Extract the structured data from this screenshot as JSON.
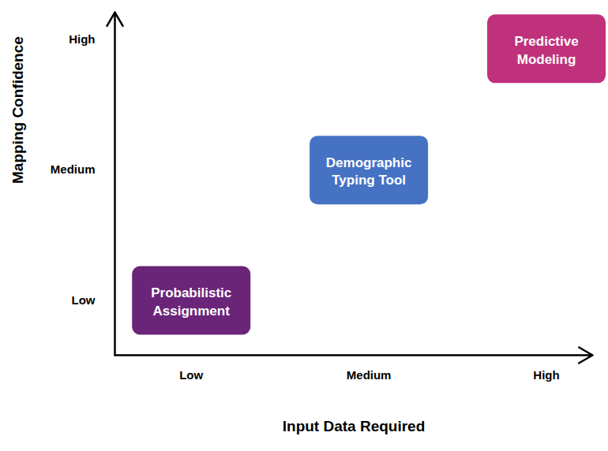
{
  "chart_data": {
    "type": "scatter",
    "x_label": "Input Data Required",
    "y_label": "Mapping Confidence",
    "xlim": [
      0.57,
      3.26
    ],
    "ylim": [
      0.58,
      3.21
    ],
    "xticks": [
      {
        "value": 1,
        "label": "Low"
      },
      {
        "value": 2,
        "label": "Medium"
      },
      {
        "value": 3,
        "label": "High"
      }
    ],
    "yticks": [
      {
        "value": 1,
        "label": "Low"
      },
      {
        "value": 2,
        "label": "Medium"
      },
      {
        "value": 3,
        "label": "High"
      }
    ],
    "x": [
      1,
      2,
      3
    ],
    "values": [
      1,
      2,
      2.93
    ],
    "labels": [
      "Probabilistic Assignment",
      "Demographic Typing Tool",
      "Predictive Modeling"
    ],
    "colors": [
      "#6a2579",
      "#4672c4",
      "#c0317c"
    ],
    "marker": "rounded_box",
    "grid": false
  }
}
